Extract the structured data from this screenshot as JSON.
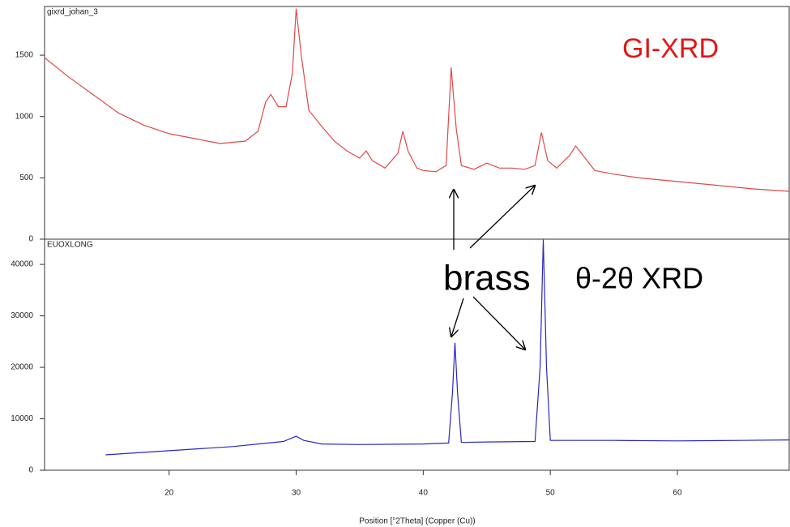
{
  "chart_data": [
    {
      "type": "line",
      "title": "gixrd_johan_3",
      "annotations": [
        "GI-XRD"
      ],
      "xlim": [
        10.2,
        68.8
      ],
      "ylim": [
        0,
        1897
      ],
      "yticks": [
        0,
        500,
        1000,
        1500
      ],
      "x": [
        10.2,
        12,
        14,
        16,
        18,
        20,
        22,
        24,
        26,
        27,
        27.6,
        28,
        28.6,
        29.2,
        29.7,
        30,
        30.4,
        31,
        32,
        33,
        34,
        35,
        35.5,
        36,
        37,
        38,
        38.4,
        38.8,
        39.5,
        40,
        41,
        41.8,
        42.2,
        42.6,
        43,
        44,
        45,
        46,
        47,
        48,
        48.8,
        49.3,
        49.8,
        50.5,
        51.5,
        52,
        52.6,
        53.5,
        55,
        57,
        60,
        63,
        66,
        68.8
      ],
      "series": [
        {
          "name": "gixrd_johan_3",
          "color": "#e04848",
          "values": [
            1480,
            1330,
            1180,
            1030,
            930,
            860,
            820,
            780,
            800,
            880,
            1120,
            1180,
            1080,
            1080,
            1350,
            1880,
            1500,
            1050,
            920,
            800,
            720,
            660,
            720,
            640,
            580,
            700,
            880,
            720,
            580,
            560,
            550,
            600,
            1400,
            900,
            600,
            570,
            620,
            580,
            580,
            570,
            600,
            870,
            640,
            580,
            680,
            760,
            680,
            560,
            530,
            500,
            470,
            440,
            410,
            390
          ]
        }
      ]
    },
    {
      "type": "line",
      "title": "EUOXLONG",
      "annotations": [
        "brass",
        "θ-2θ XRD"
      ],
      "x_label": "Position [°2Theta] (Copper (Cu))",
      "xlim": [
        10.2,
        68.8
      ],
      "xticks": [
        20,
        30,
        40,
        50,
        60
      ],
      "ylim": [
        0,
        44900
      ],
      "yticks": [
        0,
        10000,
        20000,
        30000,
        40000
      ],
      "x": [
        15,
        20,
        25,
        27.8,
        29,
        30,
        30.6,
        32,
        35,
        40,
        42,
        42.3,
        42.5,
        42.7,
        43,
        45,
        48.8,
        49.2,
        49.45,
        49.7,
        50,
        55,
        60,
        65,
        68.8
      ],
      "series": [
        {
          "name": "EUOXLONG",
          "color": "#2828c0",
          "values": [
            3000,
            3800,
            4600,
            5300,
            5600,
            6600,
            5800,
            5100,
            5000,
            5100,
            5300,
            15000,
            24800,
            15000,
            5400,
            5500,
            5600,
            20000,
            44800,
            20000,
            5800,
            5800,
            5700,
            5800,
            5900
          ]
        }
      ]
    }
  ]
}
